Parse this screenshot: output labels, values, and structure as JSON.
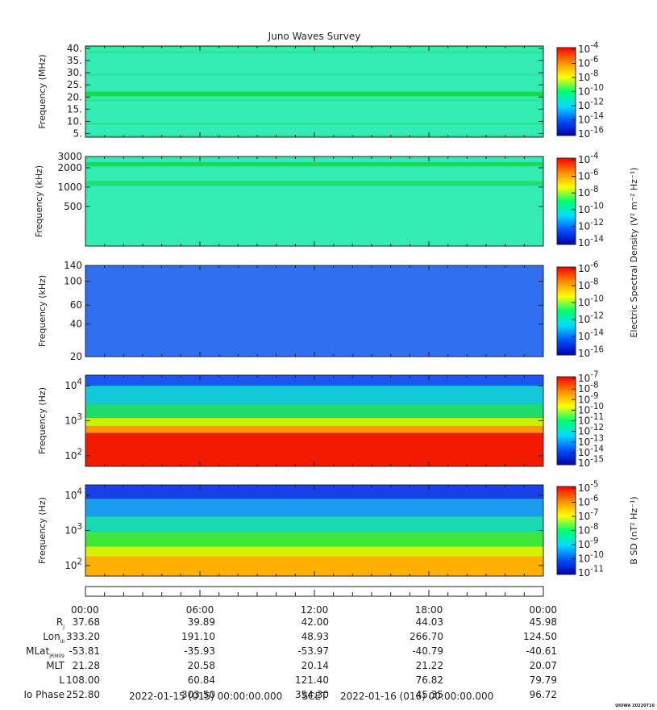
{
  "chart_data": {
    "type": "heatmap",
    "title": "Juno Waves Survey",
    "panels": [
      {
        "ylabel": "Frequency (MHz)",
        "yscale": "linear",
        "ylim": [
          3.5,
          41
        ],
        "ticks": [
          {
            "v": 5,
            "l": "5."
          },
          {
            "v": 10,
            "l": "10."
          },
          {
            "v": 15,
            "l": "15."
          },
          {
            "v": 20,
            "l": "20."
          },
          {
            "v": 25,
            "l": "25."
          },
          {
            "v": 30,
            "l": "30."
          },
          {
            "v": 35,
            "l": "35."
          },
          {
            "v": 40,
            "l": "40."
          }
        ],
        "background": "#33ecb3",
        "bands": [
          {
            "from": 40.5,
            "to": 41,
            "color": "#1fe07a"
          },
          {
            "from": 38,
            "to": 38.8,
            "color": "#2be59a"
          },
          {
            "from": 28.8,
            "to": 29.6,
            "color": "#2be59a"
          },
          {
            "from": 20.3,
            "to": 22.2,
            "color": "#17d94a"
          },
          {
            "from": 18.2,
            "to": 19.2,
            "color": "#2be59a"
          },
          {
            "from": 8.6,
            "to": 9.4,
            "color": "#26e28c"
          },
          {
            "from": 3.5,
            "to": 4.5,
            "color": "#2be59a"
          }
        ],
        "colorbar": {
          "stops": [
            "#0000aa",
            "#0050ff",
            "#00dcff",
            "#00ff6e",
            "#ffff00",
            "#ff8c00",
            "#ff0000"
          ],
          "ticks": [
            "10",
            "10",
            "10",
            "10",
            "10",
            "10",
            "10"
          ],
          "exps": [
            "-4",
            "-6",
            "-8",
            "-10",
            "-12",
            "-14",
            "-16"
          ],
          "label": ""
        }
      },
      {
        "ylabel": "Frequency (kHz)",
        "yscale": "log",
        "ylim": [
          120,
          3000
        ],
        "ticks": [
          {
            "v": 500,
            "l": "500"
          },
          {
            "v": 1000,
            "l": "1000"
          },
          {
            "v": 2000,
            "l": "2000"
          },
          {
            "v": 3000,
            "l": "3000"
          }
        ],
        "background": "#33ecb3",
        "bands": [
          {
            "from": 2100,
            "to": 2450,
            "color": "#1adb50"
          },
          {
            "from": 1050,
            "to": 1250,
            "color": "#22df70"
          }
        ],
        "colorbar": {
          "stops": [
            "#0000aa",
            "#0050ff",
            "#00dcff",
            "#00ff6e",
            "#ffff00",
            "#ff8c00",
            "#ff0000"
          ],
          "ticks": [
            "10",
            "10",
            "10",
            "10",
            "10",
            "10"
          ],
          "exps": [
            "-4",
            "-6",
            "-8",
            "-10",
            "-12",
            "-14"
          ],
          "label": "Electric Spectral Density (V² m⁻² Hz⁻¹)"
        }
      },
      {
        "ylabel": "Frequency (kHz)",
        "yscale": "log",
        "ylim": [
          20,
          140
        ],
        "ticks": [
          {
            "v": 20,
            "l": "20"
          },
          {
            "v": 40,
            "l": "40"
          },
          {
            "v": 60,
            "l": "60"
          },
          {
            "v": 100,
            "l": "100"
          },
          {
            "v": 140,
            "l": "140"
          }
        ],
        "background": "#2f6ff0",
        "bands": [],
        "colorbar": {
          "stops": [
            "#0000aa",
            "#0050ff",
            "#00dcff",
            "#00ff6e",
            "#ffff00",
            "#ff8c00",
            "#ff0000"
          ],
          "ticks": [
            "10",
            "10",
            "10",
            "10",
            "10",
            "10"
          ],
          "exps": [
            "-6",
            "-8",
            "-10",
            "-12",
            "-14",
            "-16"
          ],
          "label": ""
        }
      },
      {
        "ylabel": "Frequency (Hz)",
        "yscale": "log",
        "ylim": [
          50,
          20000
        ],
        "ticks": [
          {
            "v": 100,
            "l": "10",
            "e": "2"
          },
          {
            "v": 1000,
            "l": "10",
            "e": "3"
          },
          {
            "v": 10000,
            "l": "10",
            "e": "4"
          }
        ],
        "background": "#1e90ff",
        "bands": [
          {
            "from": 10000,
            "to": 20000,
            "color": "#1b55f2"
          },
          {
            "from": 3000,
            "to": 10000,
            "color": "#13c8d8"
          },
          {
            "from": 1200,
            "to": 3000,
            "color": "#1edc6a"
          },
          {
            "from": 700,
            "to": 1200,
            "color": "#c8f000"
          },
          {
            "from": 450,
            "to": 700,
            "color": "#ff9a00"
          },
          {
            "from": 50,
            "to": 450,
            "color": "#f21a00"
          }
        ],
        "colorbar": {
          "stops": [
            "#0000aa",
            "#0050ff",
            "#00dcff",
            "#00ff6e",
            "#ffff00",
            "#ff8c00",
            "#ff0000"
          ],
          "ticks": [
            "10",
            "10",
            "10",
            "10",
            "10",
            "10",
            "10",
            "10",
            "10"
          ],
          "exps": [
            "-7",
            "-8",
            "-9",
            "-10",
            "-11",
            "-12",
            "-13",
            "-14",
            "-15"
          ],
          "label": ""
        }
      },
      {
        "ylabel": "Frequency (Hz)",
        "yscale": "log",
        "ylim": [
          50,
          20000
        ],
        "ticks": [
          {
            "v": 100,
            "l": "10",
            "e": "2"
          },
          {
            "v": 1000,
            "l": "10",
            "e": "3"
          },
          {
            "v": 10000,
            "l": "10",
            "e": "4"
          }
        ],
        "background": "#1e90ff",
        "bands": [
          {
            "from": 8000,
            "to": 20000,
            "color": "#1a3ee8"
          },
          {
            "from": 2500,
            "to": 8000,
            "color": "#1a9cf0"
          },
          {
            "from": 900,
            "to": 2500,
            "color": "#1ad8b0"
          },
          {
            "from": 350,
            "to": 900,
            "color": "#3ee83a"
          },
          {
            "from": 180,
            "to": 350,
            "color": "#d8f000"
          },
          {
            "from": 50,
            "to": 180,
            "color": "#ffb000"
          }
        ],
        "colorbar": {
          "stops": [
            "#0000aa",
            "#0050ff",
            "#00dcff",
            "#00ff6e",
            "#ffff00",
            "#ff8c00",
            "#ff0000"
          ],
          "ticks": [
            "10",
            "10",
            "10",
            "10",
            "10",
            "10",
            "10"
          ],
          "exps": [
            "-5",
            "-6",
            "-7",
            "-8",
            "-9",
            "-10",
            "-11"
          ],
          "label": "B SD (nT² Hz⁻¹)"
        }
      }
    ],
    "time_ticks": [
      "00:00",
      "06:00",
      "12:00",
      "18:00",
      "00:00"
    ],
    "ephemeris": [
      {
        "label": "R",
        "sub": "J",
        "values": [
          "37.68",
          "39.89",
          "42.00",
          "44.03",
          "45.98"
        ]
      },
      {
        "label": "Lon",
        "sub": "III",
        "values": [
          "333.20",
          "191.10",
          "48.93",
          "266.70",
          "124.50"
        ]
      },
      {
        "label": "MLat",
        "sub": "JRM09",
        "values": [
          "-53.81",
          "-35.93",
          "-53.97",
          "-40.79",
          "-40.61"
        ]
      },
      {
        "label": "MLT",
        "sub": "",
        "values": [
          "21.28",
          "20.58",
          "20.14",
          "21.22",
          "20.07"
        ]
      },
      {
        "label": "L",
        "sub": "",
        "values": [
          "108.00",
          "60.84",
          "121.40",
          "76.82",
          "79.79"
        ]
      },
      {
        "label": "Io Phase",
        "sub": "",
        "values": [
          "252.80",
          "303.50",
          "354.30",
          "45.35",
          "96.72"
        ]
      }
    ],
    "footer": {
      "start": "2022-01-15 (015) 00:00:00.000",
      "mid": "SCET",
      "end": "2022-01-16 (016) 00:00:00.000",
      "stamp": "UIOWA 20220710"
    }
  }
}
